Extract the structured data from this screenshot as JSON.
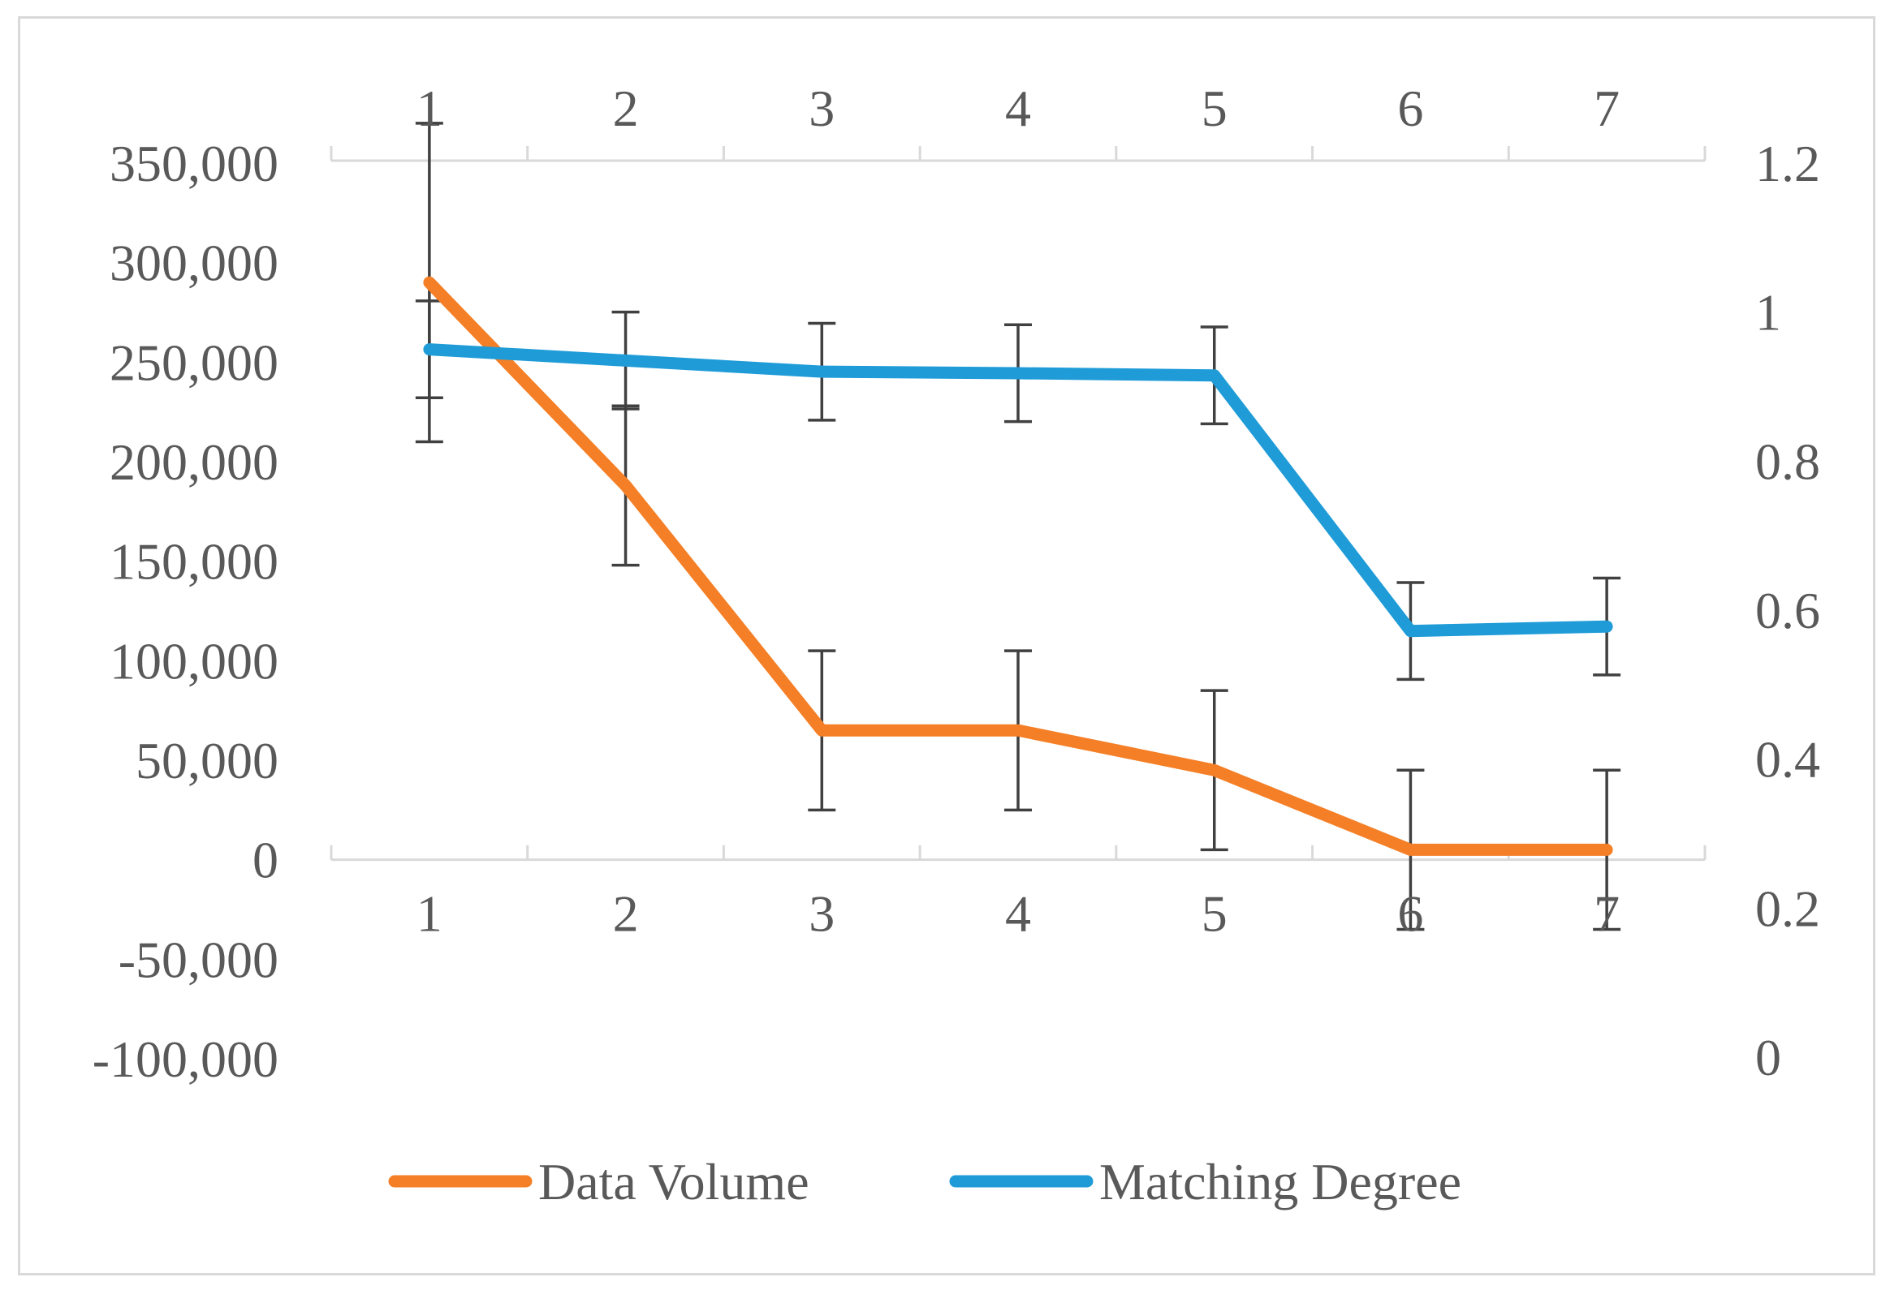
{
  "chart_data": {
    "type": "line",
    "categories": [
      "1",
      "2",
      "3",
      "4",
      "5",
      "6",
      "7"
    ],
    "x": [
      1,
      2,
      3,
      4,
      5,
      6,
      7
    ],
    "series": [
      {
        "name": "Data Volume",
        "axis": "left",
        "color": "#f47f26",
        "values": [
          290000,
          188000,
          65000,
          65000,
          45000,
          5000,
          5000
        ],
        "error": [
          80000,
          40000,
          40000,
          40000,
          40000,
          40000,
          40000
        ]
      },
      {
        "name": "Matching Degree",
        "axis": "right",
        "color": "#1f9cd8",
        "values": [
          0.95,
          0.935,
          0.92,
          0.918,
          0.915,
          0.572,
          0.578
        ],
        "error": [
          0.065,
          0.065,
          0.065,
          0.065,
          0.065,
          0.065,
          0.065
        ]
      }
    ],
    "y_left": {
      "ylim": [
        -100000,
        350000
      ],
      "ticks": [
        350000,
        300000,
        250000,
        200000,
        150000,
        100000,
        50000,
        0,
        -50000,
        -100000
      ],
      "tick_labels": [
        "350,000",
        "300,000",
        "250,000",
        "200,000",
        "150,000",
        "100,000",
        "50,000",
        "0",
        "-50,000",
        "-100,000"
      ]
    },
    "y_right": {
      "ylim": [
        0,
        1.2
      ],
      "ticks": [
        1.2,
        1,
        0.8,
        0.6,
        0.4,
        0.2,
        0
      ],
      "tick_labels": [
        "1.2",
        "1",
        "0.8",
        "0.6",
        "0.4",
        "0.2",
        "0"
      ]
    },
    "x_top_tick_labels": [
      "1",
      "2",
      "3",
      "4",
      "5",
      "6",
      "7"
    ],
    "x_bottom_tick_labels": [
      "1",
      "2",
      "3",
      "4",
      "5",
      "6",
      "7"
    ],
    "title": "",
    "xlabel": "",
    "ylabel": "",
    "grid": false,
    "legend": "bottom",
    "axis_color": "#d9d9d9",
    "error_bar_color": "#404040",
    "text_color": "#595959"
  }
}
